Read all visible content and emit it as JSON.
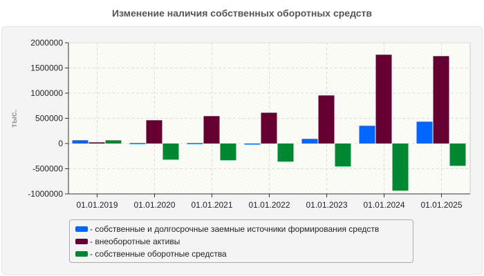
{
  "chart_data": {
    "type": "bar",
    "title": "Изменение наличия собственных оборотных средств",
    "ylabel": "тыс.",
    "xlabel": "",
    "ylim": [
      -1000000,
      2000000
    ],
    "yticks": [
      2000000,
      1500000,
      1000000,
      500000,
      0,
      -500000,
      -1000000
    ],
    "grid": true,
    "legend_placement": "bottom",
    "categories": [
      "01.01.2019",
      "01.01.2020",
      "01.01.2021",
      "01.01.2022",
      "01.01.2023",
      "01.01.2024",
      "01.01.2025"
    ],
    "series": [
      {
        "name": "- собственные и долгосрочные заемные источники формирования средств",
        "color": "#0066ff",
        "values": [
          65000,
          10000,
          10000,
          -20000,
          92000,
          352000,
          434000
        ]
      },
      {
        "name": "- внеоборотные активы",
        "color": "#660033",
        "values": [
          23000,
          462000,
          544000,
          611000,
          955000,
          1763000,
          1735000
        ]
      },
      {
        "name": "- собственные оборотные средства",
        "color": "#008833",
        "values": [
          64000,
          -320000,
          -333000,
          -360000,
          -456000,
          -936000,
          -443000
        ]
      }
    ]
  }
}
